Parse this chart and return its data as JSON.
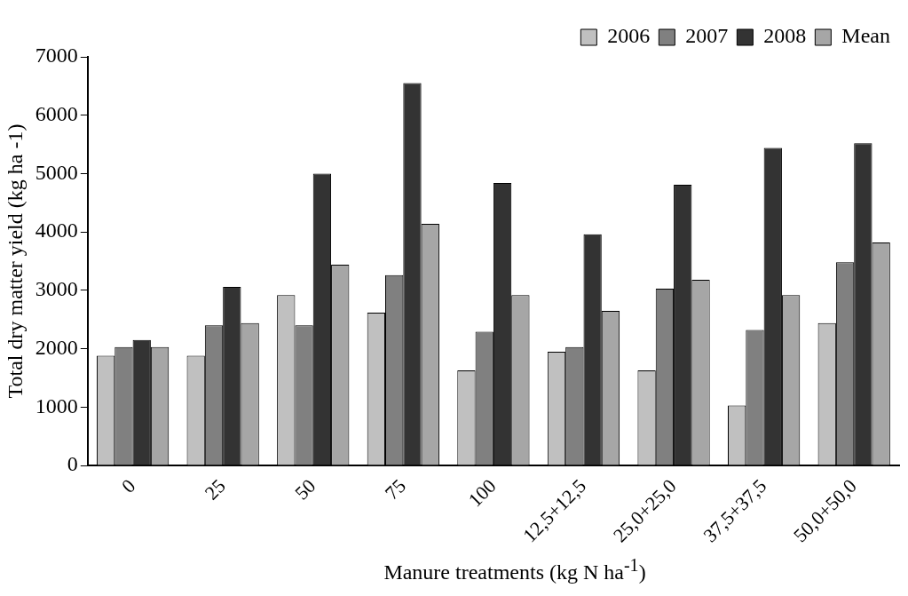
{
  "chart_data": {
    "type": "bar",
    "xlabel": "Manure treatments (kg N ha$^{-1}$)",
    "ylabel": "Total dry matter yield (kg ha -1)",
    "categories": [
      "0",
      "25",
      "50",
      "75",
      "100",
      "12,5+12,5",
      "25,0+25,0",
      "37,5+37,5",
      "50,0+50,0"
    ],
    "series": [
      {
        "name": "2006",
        "color": "#c0c0c0",
        "values": [
          1880,
          1880,
          2920,
          2620,
          1630,
          1950,
          1630,
          1030,
          2440
        ]
      },
      {
        "name": "2007",
        "color": "#808080",
        "values": [
          2030,
          2400,
          2400,
          3260,
          2290,
          2030,
          3030,
          2320,
          3480
        ]
      },
      {
        "name": "2008",
        "color": "#333333",
        "values": [
          2150,
          3060,
          5000,
          6550,
          4840,
          3960,
          4810,
          5440,
          5520
        ]
      },
      {
        "name": "Mean",
        "color": "#a6a6a6",
        "values": [
          2030,
          2440,
          3440,
          4140,
          2920,
          2650,
          3180,
          2920,
          3820
        ]
      }
    ],
    "ylim": [
      0,
      7000
    ],
    "yticks": [
      0,
      1000,
      2000,
      3000,
      4000,
      5000,
      6000,
      7000
    ],
    "grid": false,
    "legend": "top right"
  }
}
